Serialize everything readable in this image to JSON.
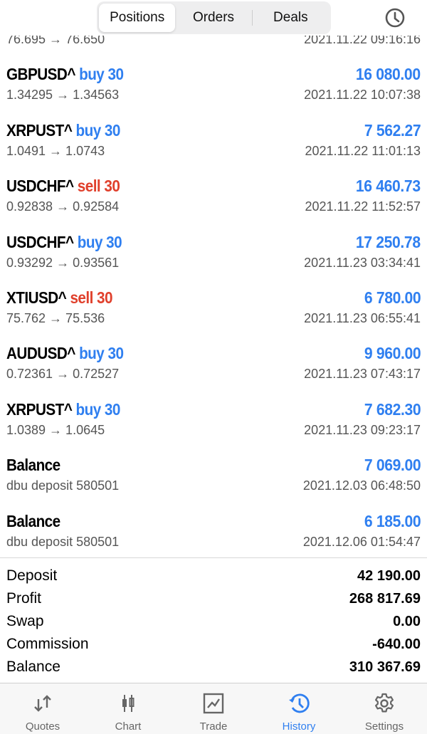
{
  "header": {
    "tabs": [
      {
        "label": "Positions",
        "active": true
      },
      {
        "label": "Orders"
      },
      {
        "label": "Deals"
      }
    ],
    "icon": "clock-icon"
  },
  "colors": {
    "accent": "#2f7ff0",
    "sell": "#e0402c"
  },
  "deals": [
    {
      "symbol": "",
      "side": "",
      "side_type": "",
      "amount": "",
      "prices": "76.695 → 76.650",
      "time": "2021.11.22 09:16:16"
    },
    {
      "symbol": "GBPUSD^",
      "side": "buy 30",
      "side_type": "buy",
      "amount": "16 080.00",
      "prices": "1.34295 → 1.34563",
      "time": "2021.11.22 10:07:38"
    },
    {
      "symbol": "XRPUST^",
      "side": "buy 30",
      "side_type": "buy",
      "amount": "7 562.27",
      "prices": "1.0491 → 1.0743",
      "time": "2021.11.22 11:01:13"
    },
    {
      "symbol": "USDCHF^",
      "side": "sell 30",
      "side_type": "sell",
      "amount": "16 460.73",
      "prices": "0.92838 → 0.92584",
      "time": "2021.11.22 11:52:57"
    },
    {
      "symbol": "USDCHF^",
      "side": "buy 30",
      "side_type": "buy",
      "amount": "17 250.78",
      "prices": "0.93292 → 0.93561",
      "time": "2021.11.23 03:34:41"
    },
    {
      "symbol": "XTIUSD^",
      "side": "sell 30",
      "side_type": "sell",
      "amount": "6 780.00",
      "prices": "75.762 → 75.536",
      "time": "2021.11.23 06:55:41"
    },
    {
      "symbol": "AUDUSD^",
      "side": "buy 30",
      "side_type": "buy",
      "amount": "9 960.00",
      "prices": "0.72361 → 0.72527",
      "time": "2021.11.23 07:43:17"
    },
    {
      "symbol": "XRPUST^",
      "side": "buy 30",
      "side_type": "buy",
      "amount": "7 682.30",
      "prices": "1.0389 → 1.0645",
      "time": "2021.11.23 09:23:17"
    },
    {
      "symbol": "Balance",
      "side": "",
      "side_type": "",
      "amount": "7 069.00",
      "prices": "dbu deposit 580501",
      "time": "2021.12.03 06:48:50"
    },
    {
      "symbol": "Balance",
      "side": "",
      "side_type": "",
      "amount": "6 185.00",
      "prices": "dbu deposit 580501",
      "time": "2021.12.06 01:54:47"
    }
  ],
  "summary": [
    {
      "label": "Deposit",
      "value": "42 190.00"
    },
    {
      "label": "Profit",
      "value": "268 817.69"
    },
    {
      "label": "Swap",
      "value": "0.00"
    },
    {
      "label": "Commission",
      "value": "-640.00"
    },
    {
      "label": "Balance",
      "value": "310 367.69"
    }
  ],
  "tabbar": [
    {
      "label": "Quotes",
      "icon": "quotes-arrows-icon"
    },
    {
      "label": "Chart",
      "icon": "candlestick-icon"
    },
    {
      "label": "Trade",
      "icon": "trade-chart-icon"
    },
    {
      "label": "History",
      "icon": "history-icon",
      "active": true
    },
    {
      "label": "Settings",
      "icon": "gear-icon"
    }
  ]
}
